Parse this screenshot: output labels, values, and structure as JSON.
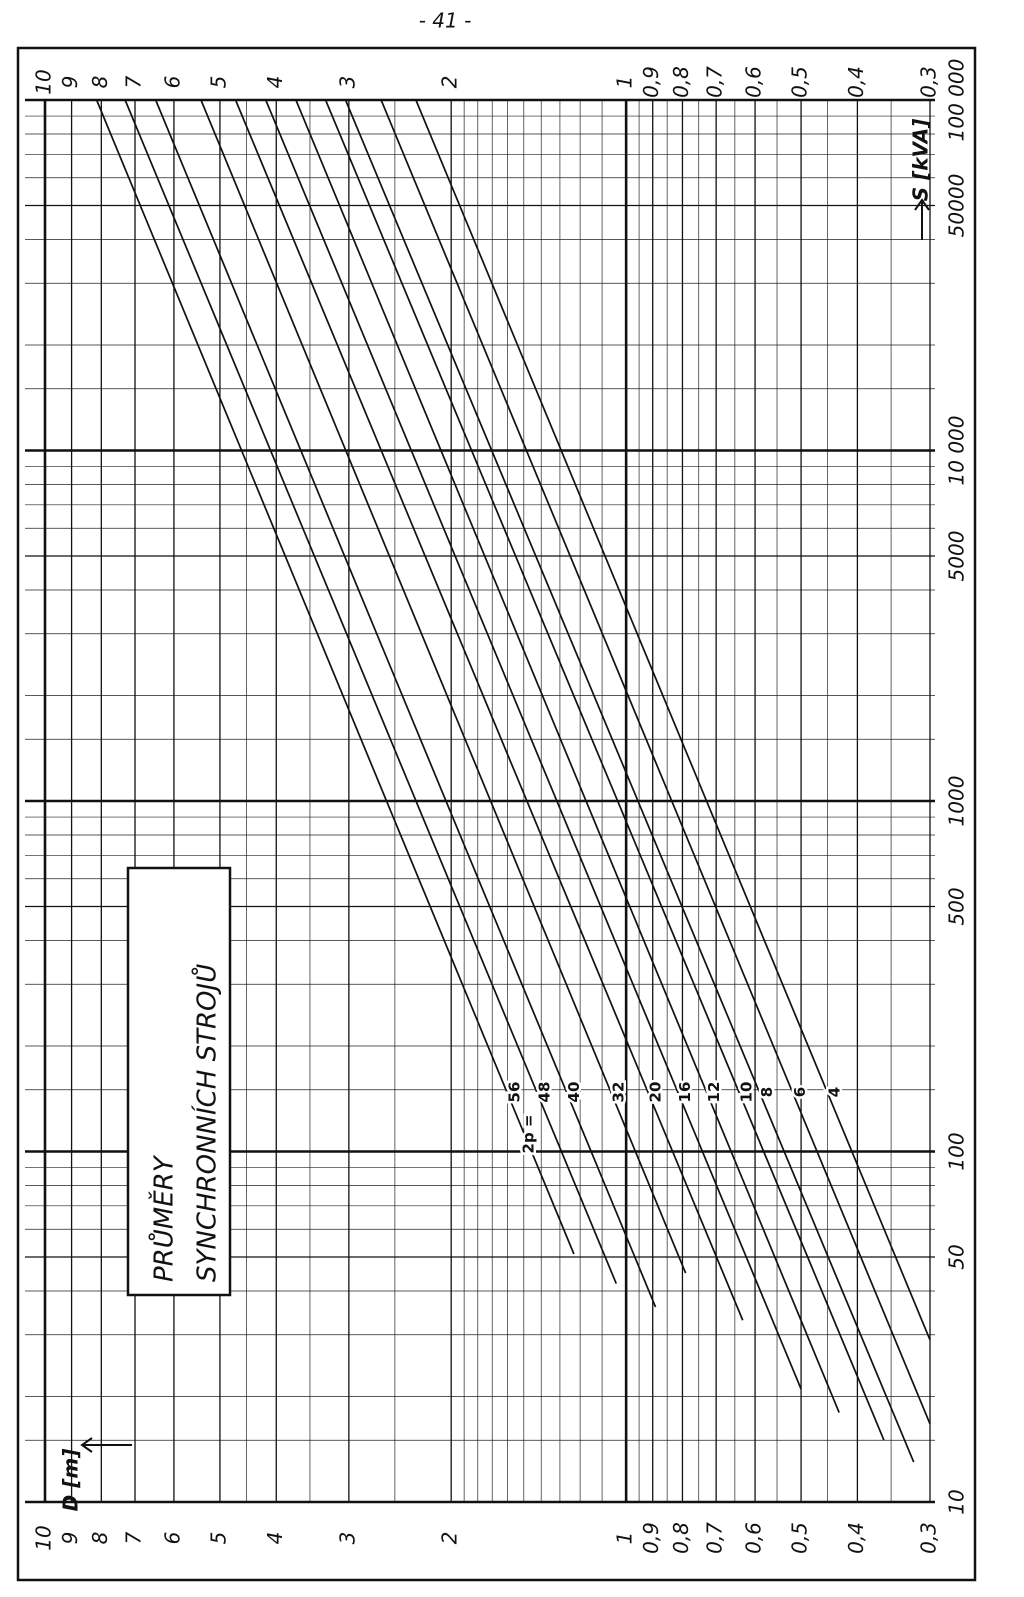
{
  "page_header": "- 41 -",
  "chart_data": {
    "type": "line",
    "title_lines": [
      "PRŮMĚRY",
      "SYNCHRONNÍCH STROJŮ"
    ],
    "xlabel": "S [kVA]",
    "ylabel": "D [m]",
    "series_label_prefix": "2p =",
    "xscale": "log",
    "yscale": "log",
    "xlim": [
      10,
      100000
    ],
    "ylim": [
      0.3,
      10
    ],
    "xticks": [
      10,
      50,
      100,
      500,
      1000,
      5000,
      {
        "value": 10000,
        "label": "10 000"
      },
      50000,
      {
        "value": 100000,
        "label": "100 000"
      }
    ],
    "yticks": [
      10,
      9,
      8,
      7,
      6,
      5,
      4,
      3,
      2,
      1,
      {
        "value": 0.9,
        "label": "0,9"
      },
      {
        "value": 0.8,
        "label": "0,8"
      },
      {
        "value": 0.7,
        "label": "0,7"
      },
      {
        "value": 0.6,
        "label": "0,6"
      },
      {
        "value": 0.5,
        "label": "0,5"
      },
      {
        "value": 0.4,
        "label": "0,4"
      },
      {
        "value": 0.3,
        "label": "0,3"
      }
    ],
    "xminor_ticks": [
      15,
      20,
      30,
      40,
      60,
      70,
      80,
      90,
      150,
      200,
      300,
      400,
      600,
      700,
      800,
      900,
      1500,
      2000,
      3000,
      4000,
      6000,
      7000,
      8000,
      9000,
      15000,
      20000,
      30000,
      40000,
      60000,
      70000,
      80000,
      90000
    ],
    "yminor_ticks": [
      0.35,
      0.45,
      0.55,
      0.65,
      0.75,
      0.85,
      0.95,
      1.1,
      1.2,
      1.3,
      1.4,
      1.5,
      1.6,
      1.7,
      1.8,
      1.9,
      2.5,
      3.5,
      4.5
    ],
    "color": "#111",
    "series": [
      {
        "name": "56",
        "x": [
          51,
          100000
        ],
        "values": [
          1.23,
          8.15
        ]
      },
      {
        "name": "48",
        "x": [
          42,
          100000
        ],
        "values": [
          1.04,
          7.28
        ]
      },
      {
        "name": "40",
        "x": [
          36,
          100000
        ],
        "values": [
          0.89,
          6.45
        ]
      },
      {
        "name": "32",
        "x": [
          45,
          100000
        ],
        "values": [
          0.79,
          5.39
        ]
      },
      {
        "name": "20",
        "x": [
          33,
          100000
        ],
        "values": [
          0.63,
          4.7
        ]
      },
      {
        "name": "16",
        "x": [
          21,
          100000
        ],
        "values": [
          0.5,
          4.17
        ]
      },
      {
        "name": "12",
        "x": [
          18,
          100000
        ],
        "values": [
          0.43,
          3.7
        ]
      },
      {
        "name": "10",
        "x": [
          15,
          100000
        ],
        "values": [
          0.36,
          3.29
        ]
      },
      {
        "name": "8",
        "x": [
          13,
          100000
        ],
        "values": [
          0.32,
          3.04
        ]
      },
      {
        "name": "6",
        "x": [
          16.7,
          100000
        ],
        "values": [
          0.3,
          2.64
        ]
      },
      {
        "name": "4",
        "x": [
          29,
          100000
        ],
        "values": [
          0.3,
          2.3
        ]
      }
    ]
  }
}
